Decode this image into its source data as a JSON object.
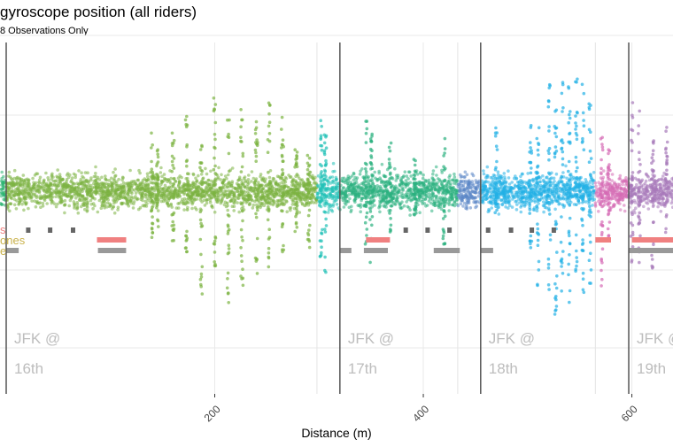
{
  "chart_data": {
    "type": "scatter",
    "title": "gyroscope position (all riders)",
    "subtitle": "8 Observations Only",
    "xlabel": "Distance (m)",
    "ylabel": "",
    "x_ticks": [
      200,
      400,
      600
    ],
    "xlim": [
      -6,
      640
    ],
    "ylim": [
      -1.0,
      1.0
    ],
    "grid": true,
    "legend": "none",
    "baseline": 0,
    "segment_boundaries": [
      0,
      298,
      320,
      433,
      455,
      565,
      597,
      640
    ],
    "intersection_lines": [
      0,
      320,
      455,
      597
    ],
    "intersection_labels": [
      {
        "x": 0,
        "line1": "JFK @",
        "line2": "16th"
      },
      {
        "x": 320,
        "line1": "JFK @",
        "line2": "17th"
      },
      {
        "x": 455,
        "line1": "JFK @",
        "line2": "18th"
      },
      {
        "x": 597,
        "line1": "JFK @",
        "line2": "19th"
      }
    ],
    "left_cut_labels": [
      {
        "text": "s",
        "color": "#f08080"
      },
      {
        "text": "ones",
        "color": "#c9b14a"
      },
      {
        "text": "e",
        "color": "#c9b14a"
      }
    ],
    "series": [
      {
        "range": [
          -6,
          0
        ],
        "color": "#2bb573",
        "spread": 0.12
      },
      {
        "range": [
          0,
          298
        ],
        "color": "#7cb342",
        "spread": 0.12
      },
      {
        "range": [
          298,
          320
        ],
        "color": "#20c1b7",
        "spread": 0.14
      },
      {
        "range": [
          320,
          433
        ],
        "color": "#2bb07f",
        "spread": 0.13
      },
      {
        "range": [
          433,
          455
        ],
        "color": "#5b86c6",
        "spread": 0.12
      },
      {
        "range": [
          455,
          565
        ],
        "color": "#22b0e6",
        "spread": 0.12
      },
      {
        "range": [
          565,
          597
        ],
        "color": "#d66bb5",
        "spread": 0.12
      },
      {
        "range": [
          597,
          640
        ],
        "color": "#a779b9",
        "spread": 0.12
      }
    ],
    "spikes": [
      {
        "x": 140,
        "series": 1,
        "up": 0.5,
        "down": 0.4
      },
      {
        "x": 145,
        "series": 1,
        "up": 0.35,
        "down": 0.3
      },
      {
        "x": 160,
        "series": 1,
        "up": 0.55,
        "down": 0.45
      },
      {
        "x": 173,
        "series": 1,
        "up": 0.65,
        "down": 0.55
      },
      {
        "x": 187,
        "series": 1,
        "up": 0.4,
        "down": 0.9
      },
      {
        "x": 200,
        "series": 1,
        "up": 0.8,
        "down": 0.7
      },
      {
        "x": 213,
        "series": 1,
        "up": 0.6,
        "down": 1.02
      },
      {
        "x": 226,
        "series": 1,
        "up": 0.74,
        "down": 0.82
      },
      {
        "x": 240,
        "series": 1,
        "up": 0.6,
        "down": 0.7
      },
      {
        "x": 252,
        "series": 1,
        "up": 0.78,
        "down": 0.66
      },
      {
        "x": 265,
        "series": 1,
        "up": 0.67,
        "down": 0.6
      },
      {
        "x": 278,
        "series": 1,
        "up": 0.35,
        "down": 0.35
      },
      {
        "x": 290,
        "series": 1,
        "up": 0.3,
        "down": 0.5
      },
      {
        "x": 302,
        "series": 2,
        "up": 0.6,
        "down": 0.6
      },
      {
        "x": 306,
        "series": 2,
        "up": 0.5,
        "down": 0.7
      },
      {
        "x": 345,
        "series": 3,
        "up": 0.6,
        "down": 0.5
      },
      {
        "x": 350,
        "series": 3,
        "up": 0.5,
        "down": 0.6
      },
      {
        "x": 368,
        "series": 3,
        "up": 0.5,
        "down": 0.4
      },
      {
        "x": 392,
        "series": 3,
        "up": 0.3,
        "down": 0.2
      },
      {
        "x": 420,
        "series": 3,
        "up": 0.45,
        "down": 0.45
      },
      {
        "x": 470,
        "series": 5,
        "up": 0.55,
        "down": 0.2
      },
      {
        "x": 503,
        "series": 5,
        "up": 0.55,
        "down": 0.5
      },
      {
        "x": 510,
        "series": 5,
        "up": 0.7,
        "down": 0.8
      },
      {
        "x": 521,
        "series": 5,
        "up": 0.9,
        "down": 0.95
      },
      {
        "x": 527,
        "series": 5,
        "up": 0.7,
        "down": 1.1
      },
      {
        "x": 533,
        "series": 5,
        "up": 0.95,
        "down": 0.95
      },
      {
        "x": 540,
        "series": 5,
        "up": 0.9,
        "down": 1.0
      },
      {
        "x": 547,
        "series": 5,
        "up": 0.95,
        "down": 0.9
      },
      {
        "x": 553,
        "series": 5,
        "up": 1.0,
        "down": 0.85
      },
      {
        "x": 560,
        "series": 5,
        "up": 0.75,
        "down": 0.8
      },
      {
        "x": 571,
        "series": 6,
        "up": 0.45,
        "down": 0.9
      },
      {
        "x": 578,
        "series": 6,
        "up": 0.35,
        "down": 0.4
      },
      {
        "x": 600,
        "series": 7,
        "up": 0.75,
        "down": 0.6
      },
      {
        "x": 607,
        "series": 7,
        "up": 0.8,
        "down": 0.6
      },
      {
        "x": 620,
        "series": 7,
        "up": 0.45,
        "down": 0.7
      },
      {
        "x": 633,
        "series": 7,
        "up": 0.55,
        "down": 0.5
      }
    ],
    "event_bars": [
      {
        "row": 0,
        "x0": 19,
        "x1": 22,
        "color": "#666666"
      },
      {
        "row": 0,
        "x0": 40,
        "x1": 43,
        "color": "#666666"
      },
      {
        "row": 0,
        "x0": 62,
        "x1": 65,
        "color": "#666666"
      },
      {
        "row": 0,
        "x0": 381,
        "x1": 384,
        "color": "#666666"
      },
      {
        "row": 0,
        "x0": 402,
        "x1": 405,
        "color": "#666666"
      },
      {
        "row": 0,
        "x0": 423,
        "x1": 426,
        "color": "#666666"
      },
      {
        "row": 0,
        "x0": 460,
        "x1": 463,
        "color": "#666666"
      },
      {
        "row": 0,
        "x0": 482,
        "x1": 485,
        "color": "#666666"
      },
      {
        "row": 0,
        "x0": 502,
        "x1": 505,
        "color": "#666666"
      },
      {
        "row": 0,
        "x0": 523,
        "x1": 526,
        "color": "#666666"
      },
      {
        "row": 1,
        "x0": 87,
        "x1": 115,
        "color": "#f08080"
      },
      {
        "row": 1,
        "x0": 345,
        "x1": 368,
        "color": "#f08080"
      },
      {
        "row": 1,
        "x0": 565,
        "x1": 580,
        "color": "#f08080"
      },
      {
        "row": 1,
        "x0": 600,
        "x1": 640,
        "color": "#f08080"
      },
      {
        "row": 2,
        "x0": 0,
        "x1": 12,
        "color": "#999999"
      },
      {
        "row": 2,
        "x0": 88,
        "x1": 115,
        "color": "#999999"
      },
      {
        "row": 2,
        "x0": 320,
        "x1": 331,
        "color": "#999999"
      },
      {
        "row": 2,
        "x0": 343,
        "x1": 366,
        "color": "#999999"
      },
      {
        "row": 2,
        "x0": 410,
        "x1": 435,
        "color": "#999999"
      },
      {
        "row": 2,
        "x0": 455,
        "x1": 467,
        "color": "#999999"
      },
      {
        "row": 2,
        "x0": 597,
        "x1": 640,
        "color": "#999999"
      }
    ]
  }
}
